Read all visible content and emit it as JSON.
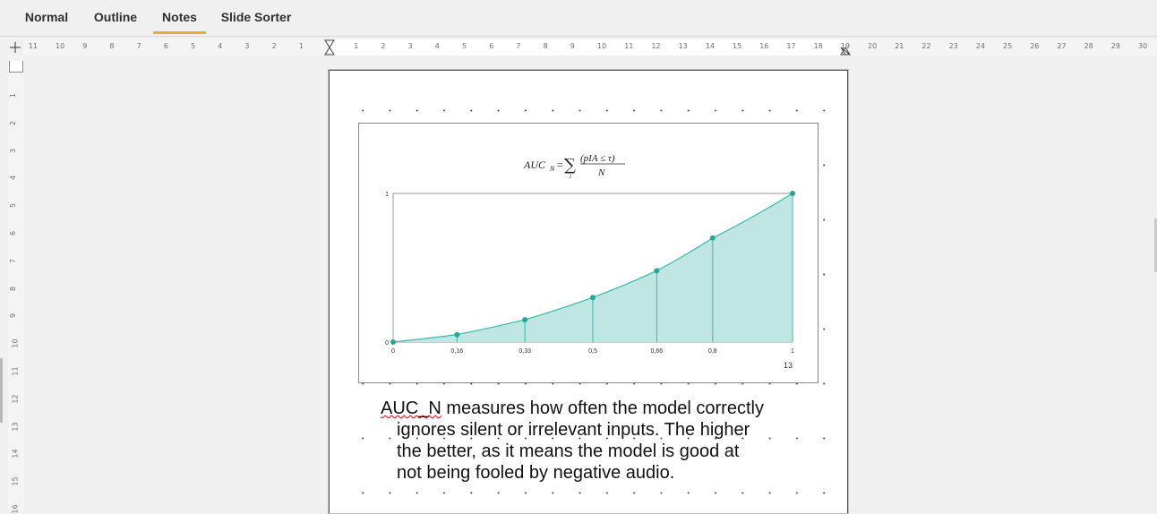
{
  "tabs": [
    {
      "label": "Normal",
      "active": false
    },
    {
      "label": "Outline",
      "active": false
    },
    {
      "label": "Notes",
      "active": true
    },
    {
      "label": "Slide Sorter",
      "active": false
    }
  ],
  "ruler": {
    "horizontal_left": [
      "11",
      "10",
      "9",
      "8",
      "7",
      "6",
      "5",
      "4",
      "3",
      "2",
      "1"
    ],
    "horizontal_right": [
      "1",
      "2",
      "3",
      "4",
      "5",
      "6",
      "7",
      "8",
      "9",
      "10",
      "11",
      "12",
      "13",
      "14",
      "15",
      "16",
      "17",
      "18",
      "19",
      "20",
      "21",
      "22",
      "23",
      "24",
      "25",
      "26",
      "27",
      "28",
      "29",
      "30"
    ],
    "vertical": [
      "1",
      "2",
      "3",
      "4",
      "5",
      "6",
      "7",
      "8",
      "9",
      "10",
      "11",
      "12",
      "13",
      "14",
      "15",
      "16"
    ]
  },
  "slide": {
    "formula": {
      "lhs": "AUC",
      "lhs_sub": "N",
      "sum_index": "i",
      "numerator": "(pIA ≤ τ)",
      "denominator": "N"
    },
    "slide_number": "13"
  },
  "chart_data": {
    "type": "area",
    "x": [
      0,
      0.16,
      0.33,
      0.5,
      0.66,
      0.8,
      1
    ],
    "x_tick_labels": [
      "0",
      "0,16",
      "0,33",
      "0,5",
      "0,66",
      "0,8",
      "1"
    ],
    "values": [
      0,
      0.05,
      0.15,
      0.3,
      0.48,
      0.7,
      1
    ],
    "y_tick_labels": [
      "0",
      "1"
    ],
    "ylim": [
      0,
      1
    ],
    "xlim": [
      0,
      1
    ],
    "fill_color": "#bfe6e3",
    "line_color": "#3bb8ae",
    "marker_color": "#26a69a"
  },
  "notes": {
    "misspelled": "AUC_N",
    "first_line_rest": " measures how often the model correctly",
    "lines": [
      "ignores silent or irrelevant inputs. The higher",
      "the better, as it means the model is good at",
      "not being fooled by negative audio."
    ]
  }
}
